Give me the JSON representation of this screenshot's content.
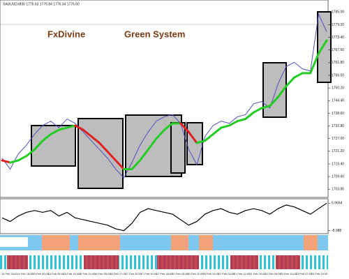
{
  "chart_data": {
    "type": "line",
    "header": "XAUUSD,M30 1776.63 1776.84 1776.34 1776.60",
    "annotations": [
      "FxDivine",
      "Green System"
    ],
    "ylim": [
      1701,
      1788
    ],
    "yticks": [
      {
        "value": 1785,
        "label": "1785.00"
      },
      {
        "value": 1779.2,
        "label": "1779.20"
      },
      {
        "value": 1773.4,
        "label": "1773.40"
      },
      {
        "value": 1767.6,
        "label": "1767.60"
      },
      {
        "value": 1761.8,
        "label": "1761.80"
      },
      {
        "value": 1756,
        "label": "1756.00"
      },
      {
        "value": 1750.2,
        "label": "1750.20"
      },
      {
        "value": 1744.4,
        "label": "1744.40"
      },
      {
        "value": 1738.6,
        "label": "1738.60"
      },
      {
        "value": 1732.8,
        "label": "1732.80"
      },
      {
        "value": 1727,
        "label": "1727.00"
      },
      {
        "value": 1721.2,
        "label": "1721.20"
      },
      {
        "value": 1715.4,
        "label": "1715.40"
      },
      {
        "value": 1709.6,
        "label": "1709.60"
      },
      {
        "value": 1703.8,
        "label": "1703.80"
      }
    ],
    "series": [
      {
        "color": "#5050c0",
        "values": [
          1718,
          1713,
          1720,
          1724,
          1729,
          1733,
          1735,
          1732,
          1736,
          1734,
          1730,
          1726,
          1722,
          1718,
          1713,
          1709,
          1716,
          1724,
          1730,
          1735,
          1737,
          1738,
          1734,
          1722,
          1715,
          1728,
          1733,
          1735,
          1734,
          1737,
          1738,
          1743,
          1744,
          1741,
          1752,
          1760,
          1762,
          1759,
          1758,
          1784,
          1776
        ]
      },
      {
        "up_color": "#22cc22",
        "down_color": "#e02020",
        "values": [
          1717,
          1716,
          1717,
          1719,
          1722,
          1726,
          1729,
          1731,
          1732,
          1733,
          1731,
          1728,
          1725,
          1721,
          1717,
          1713,
          1713,
          1717,
          1722,
          1727,
          1731,
          1734,
          1734,
          1730,
          1725,
          1726,
          1729,
          1732,
          1733,
          1735,
          1736,
          1739,
          1741,
          1742,
          1746,
          1751,
          1755,
          1757,
          1757,
          1766,
          1772
        ]
      }
    ],
    "oscillator": {
      "color": "#000000",
      "ylim": [
        -9.5,
        6.5
      ],
      "yticks": [
        5.9654,
        -8.988
      ],
      "values": [
        -2,
        -4,
        -1,
        1,
        2,
        1,
        2,
        -1,
        1,
        -2,
        -3,
        -4,
        -5,
        -6,
        -8,
        -9,
        -5,
        1,
        3,
        2,
        1,
        0,
        -3,
        -6,
        -4,
        0,
        2,
        3,
        1,
        0,
        2,
        3,
        2,
        0,
        3,
        5,
        4,
        2,
        0,
        3,
        6
      ]
    },
    "date_labels": [
      "14 Feb 2012",
      "14 Feb 15:00",
      "15 Feb 00:00",
      "15 Feb 08:00",
      "15 Feb 16:00",
      "16 Feb 01:00",
      "16 Feb 09:00",
      "16 Feb 17:00",
      "17 Feb 02:00",
      "17 Feb 10:00",
      "17 Feb 18:00",
      "20 Feb 03:00",
      "20 Feb 11:00",
      "20 Feb 19:00",
      "21 Feb 04:00",
      "21 Feb 12:00",
      "21 Feb 20:00",
      "22 Feb 05:00",
      "22 Feb 13:00",
      "23 Feb 07:00",
      "23 Feb 15:00"
    ]
  }
}
